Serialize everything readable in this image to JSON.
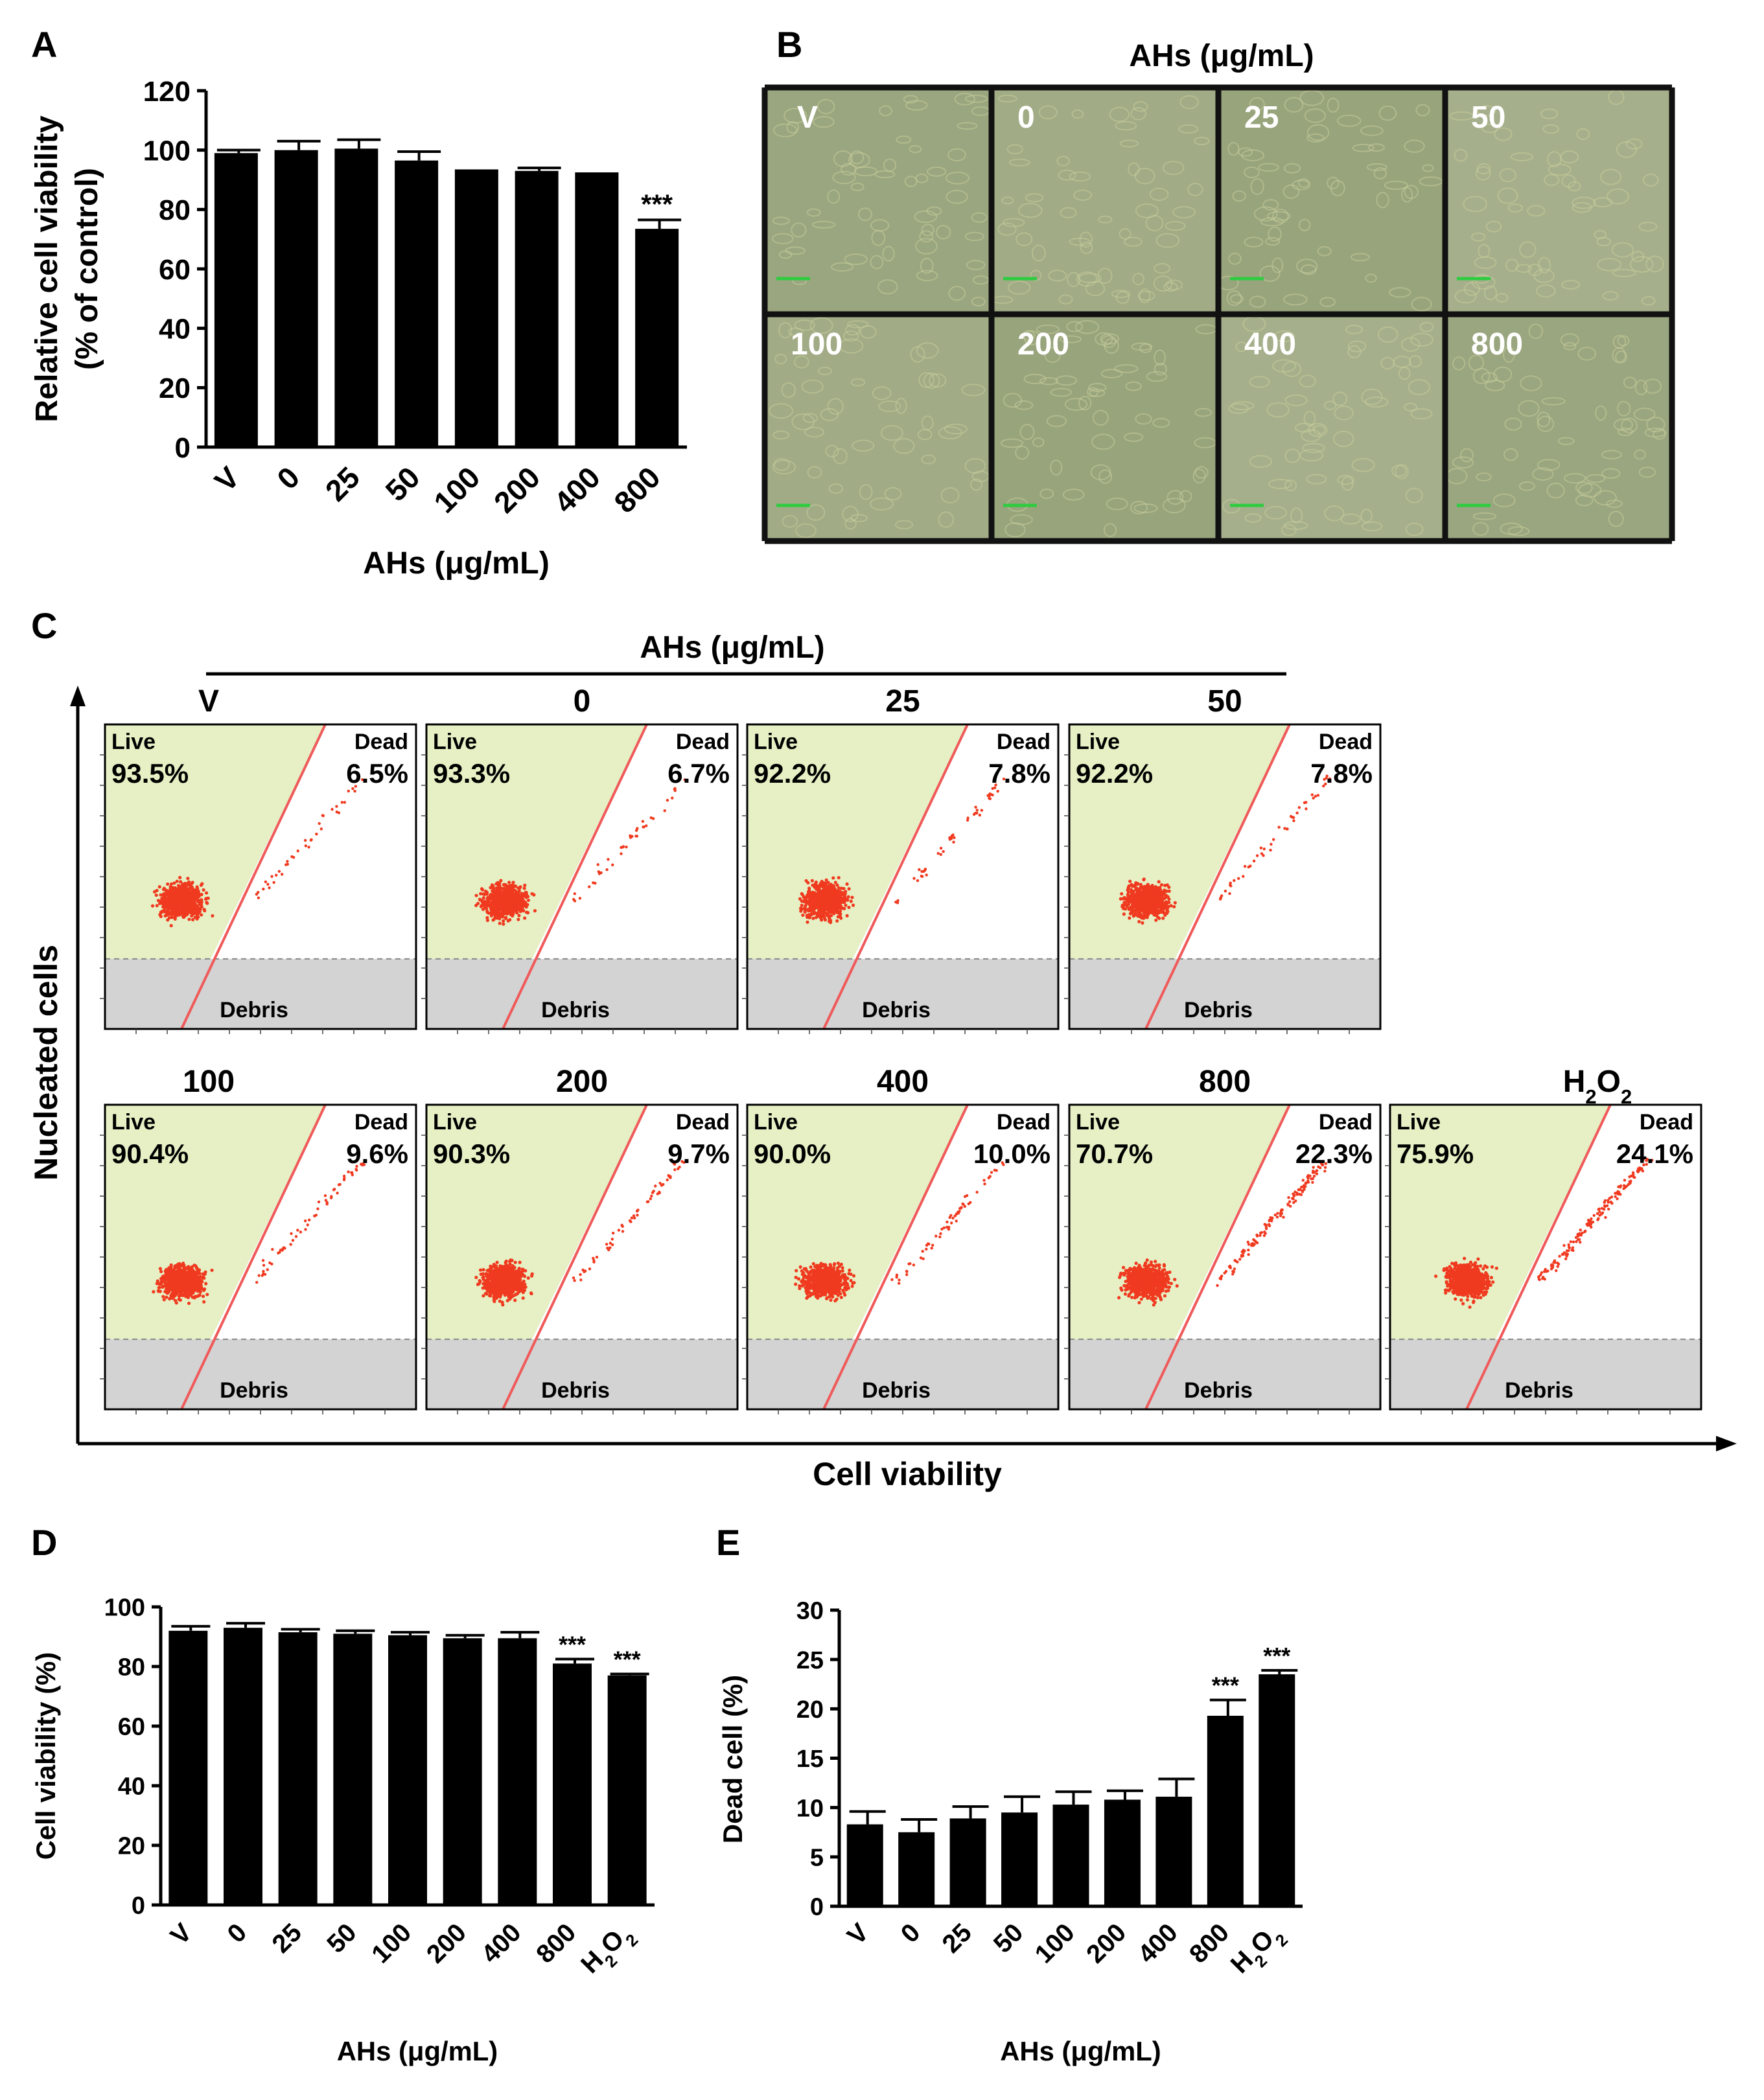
{
  "panel_letters": [
    "A",
    "B",
    "C",
    "D",
    "E"
  ],
  "panel_b": {
    "title": "AHs (μg/mL)",
    "well_labels": [
      "V",
      "0",
      "25",
      "50",
      "100",
      "200",
      "400",
      "800"
    ]
  },
  "panel_c": {
    "title": "AHs (μg/mL)",
    "ylabel": "Nucleated cells",
    "xlabel": "Cell viability",
    "gate_labels": {
      "live": "Live",
      "dead": "Dead",
      "debris": "Debris"
    },
    "plots": [
      {
        "label": "V",
        "live": "93.5%",
        "dead": "6.5%"
      },
      {
        "label": "0",
        "live": "93.3%",
        "dead": "6.7%"
      },
      {
        "label": "25",
        "live": "92.2%",
        "dead": "7.8%"
      },
      {
        "label": "50",
        "live": "92.2%",
        "dead": "7.8%"
      },
      {
        "label": "100",
        "live": "90.4%",
        "dead": "9.6%"
      },
      {
        "label": "200",
        "live": "90.3%",
        "dead": "9.7%"
      },
      {
        "label": "400",
        "live": "90.0%",
        "dead": "10.0%"
      },
      {
        "label": "800",
        "live": "70.7%",
        "dead": "22.3%"
      },
      {
        "label": "H2O2",
        "live": "75.9%",
        "dead": "24.1%"
      }
    ]
  },
  "chart_data": [
    {
      "id": "A",
      "type": "bar",
      "title": "",
      "xlabel": "AHs (μg/mL)",
      "ylabel_line1": "Relative cell viability",
      "ylabel_line2": "(% of control)",
      "categories": [
        "V",
        "0",
        "25",
        "50",
        "100",
        "200",
        "400",
        "800"
      ],
      "values": [
        99,
        100,
        100.5,
        96.5,
        93.5,
        93,
        92.5,
        73.5
      ],
      "errors": [
        1,
        3,
        3,
        3,
        0,
        1,
        0,
        3
      ],
      "annotations": [
        "",
        "",
        "",
        "",
        "",
        "",
        "",
        "***"
      ],
      "ylim": [
        0,
        120
      ],
      "yticks": [
        "0",
        "20",
        "40",
        "60",
        "80",
        "100",
        "120"
      ]
    },
    {
      "id": "D",
      "type": "bar",
      "title": "",
      "xlabel": "AHs (μg/mL)",
      "ylabel": "Cell viability (%)",
      "categories": [
        "V",
        "0",
        "25",
        "50",
        "100",
        "200",
        "400",
        "800",
        "H2O2"
      ],
      "values": [
        92,
        93,
        91.5,
        91,
        90.5,
        89.5,
        89.5,
        81,
        77
      ],
      "errors": [
        1.5,
        1.5,
        1,
        1,
        1,
        1,
        2,
        1.5,
        0.5
      ],
      "annotations": [
        "",
        "",
        "",
        "",
        "",
        "",
        "",
        "***",
        "***"
      ],
      "ylim": [
        0,
        100
      ],
      "yticks": [
        "0",
        "20",
        "40",
        "60",
        "80",
        "100"
      ]
    },
    {
      "id": "E",
      "type": "bar",
      "title": "",
      "xlabel": "AHs (μg/mL)",
      "ylabel": "Dead cell (%)",
      "categories": [
        "V",
        "0",
        "25",
        "50",
        "100",
        "200",
        "400",
        "800",
        "H2O2"
      ],
      "values": [
        8.3,
        7.5,
        8.9,
        9.5,
        10.3,
        10.8,
        11.1,
        19.3,
        23.5
      ],
      "errors": [
        1.3,
        1.3,
        1.2,
        1.6,
        1.3,
        0.9,
        1.8,
        1.6,
        0.4
      ],
      "annotations": [
        "",
        "",
        "",
        "",
        "",
        "",
        "",
        "***",
        "***"
      ],
      "ylim": [
        0,
        30
      ],
      "yticks": [
        "0",
        "5",
        "10",
        "15",
        "20",
        "25",
        "30"
      ]
    }
  ]
}
